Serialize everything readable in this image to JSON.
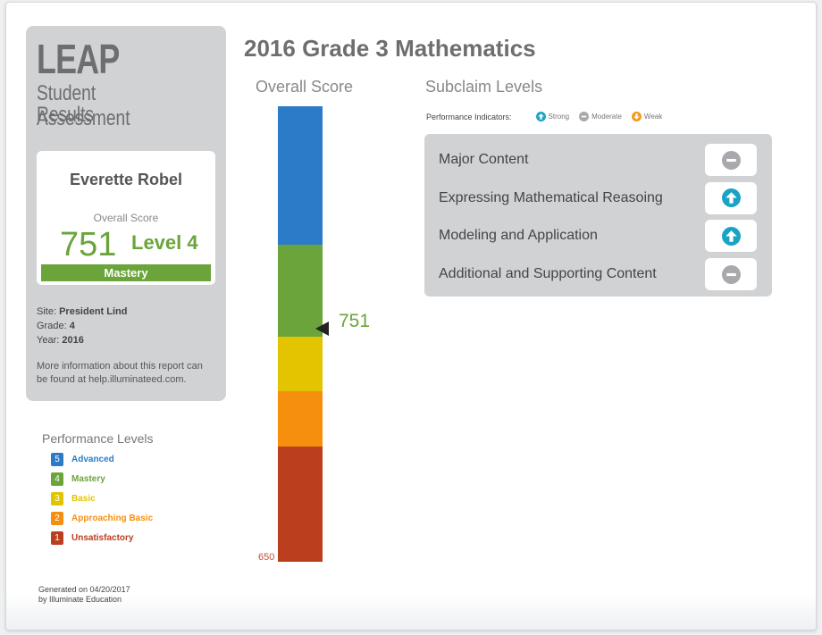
{
  "sidebar": {
    "brand": "LEAP",
    "subtitle_lines": [
      "Student Assessment",
      "Results"
    ],
    "student": {
      "name": "Everette Robel",
      "score_label": "Overall Score",
      "score": 751,
      "level": "Level 4",
      "level_name": "Mastery"
    },
    "info": [
      {
        "label": "Site:",
        "value": "President Lind"
      },
      {
        "label": "Grade:",
        "value": 4
      },
      {
        "label": "Year:",
        "value": 2016
      }
    ],
    "note": "More information about this report can be found at help.illuminateed.com."
  },
  "legend": {
    "title": "Performance Levels",
    "levels": [
      {
        "number": 5,
        "name": "Advanced",
        "color": "#2b7bc8"
      },
      {
        "number": 4,
        "name": "Mastery",
        "color": "#6aa43b"
      },
      {
        "number": 3,
        "name": "Basic",
        "color": "#e2c400"
      },
      {
        "number": 2,
        "name": "Approaching Basic",
        "color": "#f78f0e"
      },
      {
        "number": 1,
        "name": "Unsatisfactory",
        "color": "#bb3e1f"
      }
    ]
  },
  "footer": [
    "Generated on 04/20/2017",
    "by Illuminate Education"
  ],
  "main": {
    "title": "2016 Grade 3 Mathematics",
    "overall_title": "Overall Score",
    "bar_min": 650,
    "marker": 751,
    "subclaim_title": "Subclaim Levels",
    "indicators_label": "Performance Indicators:",
    "indicators": [
      {
        "name": "Strong",
        "icon": "up"
      },
      {
        "name": "Moderate",
        "icon": "neutral"
      },
      {
        "name": "Weak",
        "icon": "down"
      }
    ],
    "subclaims": [
      {
        "name": "Major Content",
        "indicator": "neutral"
      },
      {
        "name": "Expressing Mathematical Reasoing",
        "indicator": "up"
      },
      {
        "name": "Modeling and Application",
        "indicator": "up"
      },
      {
        "name": "Additional and Supporting Content",
        "indicator": "neutral"
      }
    ]
  }
}
